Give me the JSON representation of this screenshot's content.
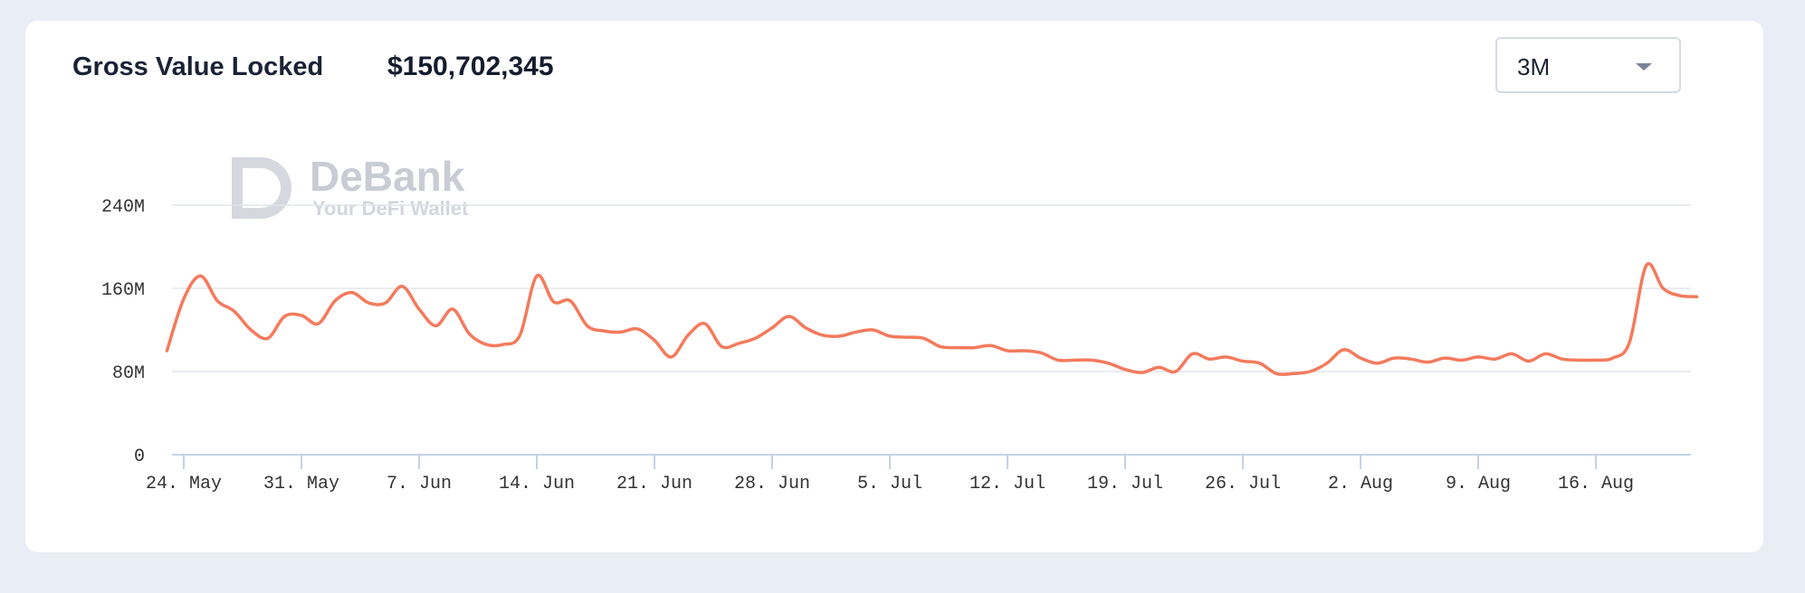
{
  "header": {
    "title": "Gross Value Locked",
    "value": "$150,702,345"
  },
  "range_selector": {
    "selected": "3M",
    "icon": "chevron-down-icon"
  },
  "watermark": {
    "name": "DeBank",
    "tagline": "Your DeFi Wallet"
  },
  "colors": {
    "line": "#f47a5c",
    "grid": "#e2e5ea",
    "axis": "#c4d2e6",
    "background": "#e9edf5",
    "card": "#ffffff"
  },
  "chart_data": {
    "type": "line",
    "title": "",
    "xlabel": "",
    "ylabel": "",
    "ylim": [
      0,
      240000000
    ],
    "y_ticks": [
      {
        "value": 0,
        "label": "0"
      },
      {
        "value": 80000000,
        "label": "80M"
      },
      {
        "value": 160000000,
        "label": "160M"
      },
      {
        "value": 240000000,
        "label": "240M"
      }
    ],
    "x_ticks": [
      "24. May",
      "31. May",
      "7. Jun",
      "14. Jun",
      "21. Jun",
      "28. Jun",
      "5. Jul",
      "12. Jul",
      "19. Jul",
      "26. Jul",
      "2. Aug",
      "9. Aug",
      "16. Aug"
    ],
    "grid": true,
    "legend": "none",
    "series": [
      {
        "x": [
          "2021-05-23",
          "2021-05-24",
          "2021-05-25",
          "2021-05-26",
          "2021-05-27",
          "2021-05-28",
          "2021-05-29",
          "2021-05-30",
          "2021-05-31",
          "2021-06-01",
          "2021-06-02",
          "2021-06-03",
          "2021-06-04",
          "2021-06-05",
          "2021-06-06",
          "2021-06-07",
          "2021-06-08",
          "2021-06-09",
          "2021-06-10",
          "2021-06-11",
          "2021-06-12",
          "2021-06-13",
          "2021-06-14",
          "2021-06-15",
          "2021-06-16",
          "2021-06-17",
          "2021-06-18",
          "2021-06-19",
          "2021-06-20",
          "2021-06-21",
          "2021-06-22",
          "2021-06-23",
          "2021-06-24",
          "2021-06-25",
          "2021-06-26",
          "2021-06-27",
          "2021-06-28",
          "2021-06-29",
          "2021-06-30",
          "2021-07-01",
          "2021-07-02",
          "2021-07-03",
          "2021-07-04",
          "2021-07-05",
          "2021-07-06",
          "2021-07-07",
          "2021-07-08",
          "2021-07-09",
          "2021-07-10",
          "2021-07-11",
          "2021-07-12",
          "2021-07-13",
          "2021-07-14",
          "2021-07-15",
          "2021-07-16",
          "2021-07-17",
          "2021-07-18",
          "2021-07-19",
          "2021-07-20",
          "2021-07-21",
          "2021-07-22",
          "2021-07-23",
          "2021-07-24",
          "2021-07-25",
          "2021-07-26",
          "2021-07-27",
          "2021-07-28",
          "2021-07-29",
          "2021-07-30",
          "2021-07-31",
          "2021-08-01",
          "2021-08-02",
          "2021-08-03",
          "2021-08-04",
          "2021-08-05",
          "2021-08-06",
          "2021-08-07",
          "2021-08-08",
          "2021-08-09",
          "2021-08-10",
          "2021-08-11",
          "2021-08-12",
          "2021-08-13",
          "2021-08-14",
          "2021-08-15",
          "2021-08-16",
          "2021-08-17",
          "2021-08-18",
          "2021-08-19",
          "2021-08-20",
          "2021-08-21",
          "2021-08-22"
        ],
        "y": [
          100000000,
          150000000,
          172000000,
          148000000,
          138000000,
          120000000,
          112000000,
          133000000,
          134000000,
          126000000,
          148000000,
          156000000,
          146000000,
          146000000,
          162000000,
          140000000,
          124000000,
          140000000,
          116000000,
          106000000,
          106000000,
          115000000,
          172000000,
          147000000,
          148000000,
          124000000,
          119000000,
          118000000,
          121000000,
          110000000,
          94000000,
          115000000,
          126000000,
          104000000,
          107000000,
          112000000,
          122000000,
          133000000,
          122000000,
          115000000,
          114000000,
          118000000,
          120000000,
          114000000,
          113000000,
          112000000,
          104000000,
          103000000,
          103000000,
          105000000,
          100000000,
          100000000,
          98000000,
          91000000,
          91000000,
          91000000,
          88000000,
          82000000,
          79000000,
          84000000,
          80000000,
          97000000,
          92000000,
          94000000,
          90000000,
          88000000,
          78000000,
          78000000,
          80000000,
          88000000,
          101000000,
          93000000,
          88000000,
          93000000,
          92000000,
          89000000,
          93000000,
          91000000,
          94000000,
          92000000,
          97000000,
          90000000,
          97000000,
          92000000,
          91000000,
          91000000,
          93000000,
          108000000,
          182000000,
          160000000,
          153000000,
          152000000
        ]
      }
    ]
  }
}
